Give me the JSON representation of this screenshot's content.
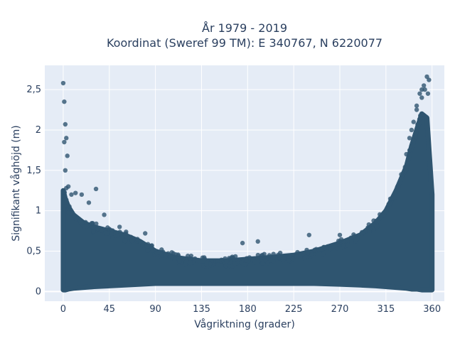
{
  "chart_data": {
    "type": "scatter",
    "title_line1": "År 1979 - 2019",
    "title_line2": "Koordinat (Sweref 99 TM): E 340767, N 6220077",
    "xlabel": "Vågriktning (grader)",
    "ylabel": "Signifikant våghöjd (m)",
    "xlim": [
      -18,
      372
    ],
    "ylim": [
      -0.12,
      2.8
    ],
    "x_ticks": [
      0,
      45,
      90,
      135,
      180,
      225,
      270,
      315,
      360
    ],
    "x_tick_labels": [
      "0",
      "45",
      "90",
      "135",
      "180",
      "225",
      "270",
      "315",
      "360"
    ],
    "y_ticks": [
      0,
      0.5,
      1,
      1.5,
      2,
      2.5
    ],
    "y_tick_labels": [
      "0",
      "0,5",
      "1",
      "1,5",
      "2",
      "2,5"
    ],
    "grid": true,
    "marker_color": "#2f5570",
    "plot_bg": "#e5ecf6",
    "envelope": {
      "x": [
        0,
        2,
        5,
        10,
        20,
        30,
        45,
        60,
        75,
        90,
        110,
        135,
        160,
        180,
        200,
        225,
        245,
        270,
        290,
        305,
        315,
        325,
        335,
        340,
        345,
        350,
        355,
        360
      ],
      "upper": [
        1.25,
        1.15,
        1.05,
        0.95,
        0.85,
        0.8,
        0.75,
        0.7,
        0.62,
        0.5,
        0.42,
        0.38,
        0.38,
        0.4,
        0.42,
        0.45,
        0.5,
        0.6,
        0.7,
        0.85,
        1.0,
        1.25,
        1.55,
        1.8,
        2.0,
        2.2,
        2.15,
        1.2
      ],
      "lower": [
        0.02,
        0.02,
        0.03,
        0.04,
        0.05,
        0.06,
        0.07,
        0.08,
        0.09,
        0.1,
        0.1,
        0.1,
        0.1,
        0.1,
        0.1,
        0.1,
        0.1,
        0.09,
        0.08,
        0.07,
        0.06,
        0.05,
        0.04,
        0.03,
        0.03,
        0.02,
        0.02,
        0.02
      ]
    },
    "outliers": {
      "x": [
        0,
        1,
        2,
        3,
        1,
        4,
        2,
        3,
        5,
        8,
        12,
        18,
        25,
        32,
        40,
        55,
        80,
        175,
        190,
        240,
        270,
        300,
        330,
        335,
        340,
        345,
        348,
        350,
        352,
        355,
        357,
        345,
        342,
        350,
        353,
        338,
        356
      ],
      "y": [
        2.58,
        2.35,
        2.07,
        1.9,
        1.85,
        1.68,
        1.5,
        1.28,
        1.3,
        1.2,
        1.22,
        1.2,
        1.1,
        1.27,
        0.95,
        0.8,
        0.72,
        0.6,
        0.62,
        0.7,
        0.7,
        0.78,
        1.45,
        1.7,
        2.0,
        2.25,
        2.45,
        2.5,
        2.55,
        2.66,
        2.62,
        2.3,
        2.1,
        2.4,
        2.5,
        1.9,
        2.45
      ]
    }
  }
}
